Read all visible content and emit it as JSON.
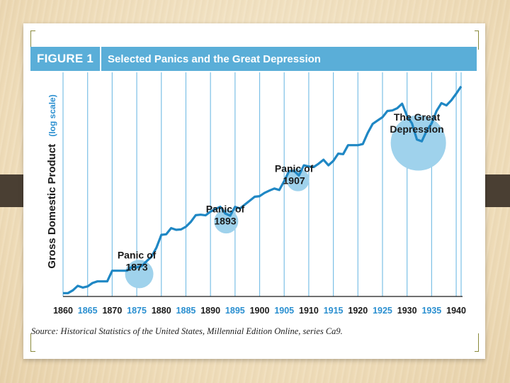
{
  "figure": {
    "label": "FIGURE 1",
    "title": "Selected Panics and the Great Depression"
  },
  "source": {
    "label": "Source:",
    "text": "Historical Statistics of the United States, Millennial Edition Online, series Ca9."
  },
  "colors": {
    "header": "#5aaed8",
    "line": "#1f87c4",
    "highlight": "#9fd2ec",
    "grid": "#7cc0e6",
    "tick_black": "#1a1a1a",
    "tick_blue": "#2a8fd0"
  },
  "chart_data": {
    "type": "line",
    "title": "Selected Panics and the Great Depression",
    "ylabel": "Gross Domestic Product",
    "ylabel_note": "(log scale)",
    "xlabel": "",
    "xlim": [
      1860,
      1941
    ],
    "ylim": [
      0,
      100
    ],
    "y_scale": "log",
    "grid": true,
    "x_ticks": [
      1860,
      1865,
      1870,
      1875,
      1880,
      1885,
      1890,
      1895,
      1900,
      1905,
      1910,
      1915,
      1920,
      1925,
      1930,
      1935,
      1940
    ],
    "series": [
      {
        "name": "",
        "x": [
          1860,
          1861,
          1862,
          1863,
          1864,
          1865,
          1866,
          1867,
          1868,
          1869,
          1870,
          1871,
          1872,
          1873,
          1874,
          1875,
          1876,
          1877,
          1878,
          1879,
          1880,
          1881,
          1882,
          1883,
          1884,
          1885,
          1886,
          1887,
          1888,
          1889,
          1890,
          1891,
          1892,
          1893,
          1894,
          1895,
          1896,
          1897,
          1898,
          1899,
          1900,
          1901,
          1902,
          1903,
          1904,
          1905,
          1906,
          1907,
          1908,
          1909,
          1910,
          1911,
          1912,
          1913,
          1914,
          1915,
          1916,
          1917,
          1918,
          1919,
          1920,
          1921,
          1922,
          1923,
          1924,
          1925,
          1926,
          1927,
          1928,
          1929,
          1930,
          1931,
          1932,
          1933,
          1934,
          1935,
          1936,
          1937,
          1938,
          1939,
          1940,
          1941
        ],
        "values": [
          3.0,
          3.0,
          5.5,
          9.5,
          8.0,
          9.0,
          12.0,
          13.5,
          13.5,
          13.5,
          23.0,
          23.0,
          23.0,
          23.0,
          26.5,
          26.0,
          27.0,
          31.5,
          35.5,
          43.5,
          55.0,
          55.5,
          61.0,
          59.5,
          59.8,
          62.3,
          66.6,
          72.5,
          73.0,
          72.4,
          75.7,
          78.0,
          80.0,
          74.0,
          72.0,
          80.0,
          78.5,
          82.0,
          85.5,
          89.0,
          89.5,
          92.5,
          94.5,
          96.3,
          95.0,
          103.0,
          112.0,
          112.0,
          108.0,
          117.0,
          116.0,
          115.5,
          118.5,
          122.0,
          117.0,
          121.0,
          127.5,
          127.0,
          135.0,
          135.0,
          135.0,
          136.0,
          146.0,
          154.0,
          157.0,
          160.0,
          165.5,
          166.0,
          168.0,
          172.0,
          161.0,
          154.5,
          140.0,
          138.5,
          148.0,
          154.5,
          165.5,
          172.5,
          170.5,
          175.0,
          181.0,
          187.5
        ]
      }
    ],
    "annotations": [
      {
        "text": [
          "Panic of",
          "1873"
        ],
        "x": 1875,
        "y": 34
      },
      {
        "text": [
          "Panic of",
          "1893"
        ],
        "x": 1893,
        "y": 75
      },
      {
        "text": [
          "Panic of",
          "1907"
        ],
        "x": 1907,
        "y": 111
      },
      {
        "text": [
          "The Great",
          "Depression"
        ],
        "x": 1932,
        "y": 157
      }
    ]
  }
}
